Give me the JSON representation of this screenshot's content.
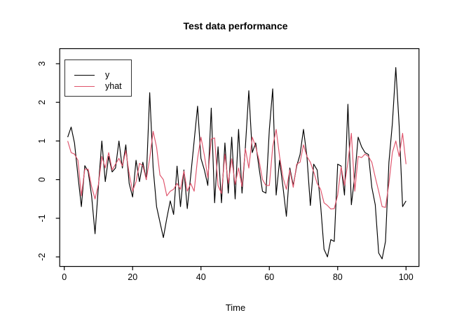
{
  "chart_data": {
    "type": "line",
    "title": "Test data performance",
    "xlabel": "Time",
    "ylabel": "",
    "grid": false,
    "legend_position": "topleft",
    "xlim": [
      -3,
      104
    ],
    "ylim": [
      -2.25,
      3.4
    ],
    "x_ticks": [
      0,
      20,
      40,
      60,
      80,
      100
    ],
    "y_ticks": [
      -2,
      -1,
      0,
      1,
      2,
      3
    ],
    "x_start": 1,
    "series": [
      {
        "name": "y",
        "color": "#000000",
        "values": [
          1.1,
          1.36,
          0.95,
          0.1,
          -0.7,
          0.36,
          0.21,
          -0.42,
          -1.4,
          -0.15,
          1.0,
          -0.05,
          0.6,
          0.2,
          0.3,
          1.0,
          0.3,
          0.9,
          -0.1,
          -0.45,
          0.5,
          -0.05,
          0.45,
          0.0,
          2.25,
          0.3,
          -0.7,
          -1.1,
          -1.5,
          -1.0,
          -0.55,
          -0.9,
          0.35,
          -0.7,
          0.25,
          -0.75,
          0.1,
          1.0,
          1.9,
          0.55,
          0.25,
          -0.15,
          1.85,
          -0.6,
          0.85,
          -0.6,
          0.95,
          -0.35,
          1.1,
          -0.5,
          1.3,
          -0.35,
          0.84,
          2.3,
          0.7,
          0.95,
          0.3,
          -0.3,
          -0.35,
          1.3,
          2.35,
          -0.4,
          0.5,
          -0.2,
          -0.95,
          0.3,
          -0.15,
          0.35,
          0.65,
          1.3,
          0.6,
          -0.67,
          0.4,
          0.25,
          -0.65,
          -1.8,
          -2.0,
          -1.55,
          -1.6,
          0.4,
          0.35,
          -0.4,
          1.95,
          -0.65,
          0.1,
          1.1,
          0.85,
          0.7,
          0.65,
          -0.2,
          -0.65,
          -1.9,
          -2.05,
          -1.6,
          0.45,
          1.45,
          2.9,
          1.4,
          -0.7,
          -0.55
        ]
      },
      {
        "name": "yhat",
        "color": "#DF536B",
        "values": [
          1.0,
          0.7,
          0.66,
          0.5,
          -0.42,
          0.27,
          0.27,
          -0.18,
          -0.5,
          -0.12,
          0.6,
          0.3,
          0.7,
          0.25,
          0.4,
          0.55,
          0.35,
          0.75,
          0.15,
          -0.3,
          -0.05,
          0.42,
          0.36,
          0.0,
          0.55,
          1.25,
          0.84,
          0.12,
          0.0,
          -0.42,
          -0.3,
          -0.25,
          -0.1,
          -0.25,
          0.22,
          -0.3,
          -0.1,
          -0.3,
          0.55,
          1.1,
          0.63,
          0.05,
          1.05,
          1.08,
          -0.15,
          -0.36,
          0.66,
          -0.1,
          0.54,
          -0.12,
          0.3,
          -0.18,
          0.8,
          0.3,
          1.1,
          0.85,
          0.5,
          0.0,
          -0.15,
          -0.15,
          0.85,
          1.3,
          0.6,
          0.05,
          -0.25,
          0.25,
          -0.2,
          0.4,
          0.45,
          0.9,
          0.6,
          0.45,
          0.2,
          -0.1,
          -0.25,
          -0.6,
          -0.67,
          -0.76,
          -0.75,
          -0.4,
          0.33,
          -0.15,
          0.45,
          1.2,
          -0.3,
          0.6,
          0.57,
          0.66,
          0.6,
          0.45,
          0.06,
          -0.3,
          -0.7,
          -0.72,
          -0.1,
          0.7,
          1.0,
          0.6,
          1.2,
          0.4
        ]
      }
    ]
  },
  "legend": {
    "entries": [
      {
        "label": "y",
        "color": "#000000"
      },
      {
        "label": "yhat",
        "color": "#DF536B"
      }
    ]
  },
  "colors": {
    "background": "#ffffff",
    "axis": "#000000",
    "text": "#000000",
    "series_y": "#000000",
    "series_yhat": "#DF536B"
  }
}
